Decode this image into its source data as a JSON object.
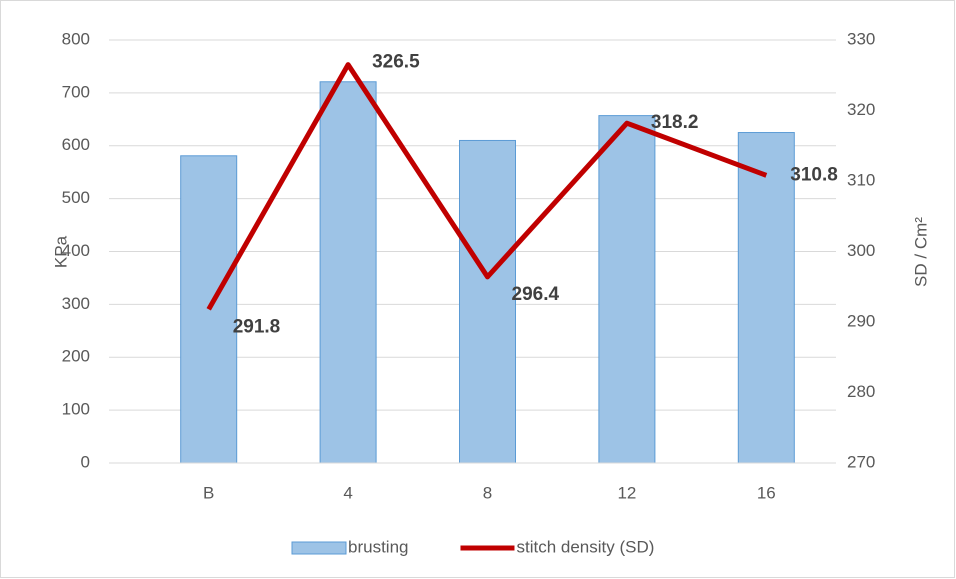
{
  "chart_data": {
    "type": "bar",
    "categories": [
      "B",
      "4",
      "8",
      "12",
      "16"
    ],
    "series": [
      {
        "name": "brusting",
        "type": "bar",
        "color": "#9dc3e6",
        "values": [
          581,
          721,
          610,
          657,
          625
        ]
      },
      {
        "name": "stitch density (SD)",
        "type": "line",
        "axis": "y2",
        "color": "#c00000",
        "values": [
          291.8,
          326.5,
          296.4,
          318.2,
          310.8
        ]
      }
    ],
    "ylabel": "KPa",
    "y2label": "SD / Cm²",
    "ylim": [
      0,
      800
    ],
    "yticks": [
      0,
      100,
      200,
      300,
      400,
      500,
      600,
      700,
      800
    ],
    "y2lim": [
      270,
      330
    ],
    "y2ticks": [
      270,
      280,
      290,
      300,
      310,
      320,
      330
    ],
    "grid": true,
    "legend": "bottom"
  }
}
